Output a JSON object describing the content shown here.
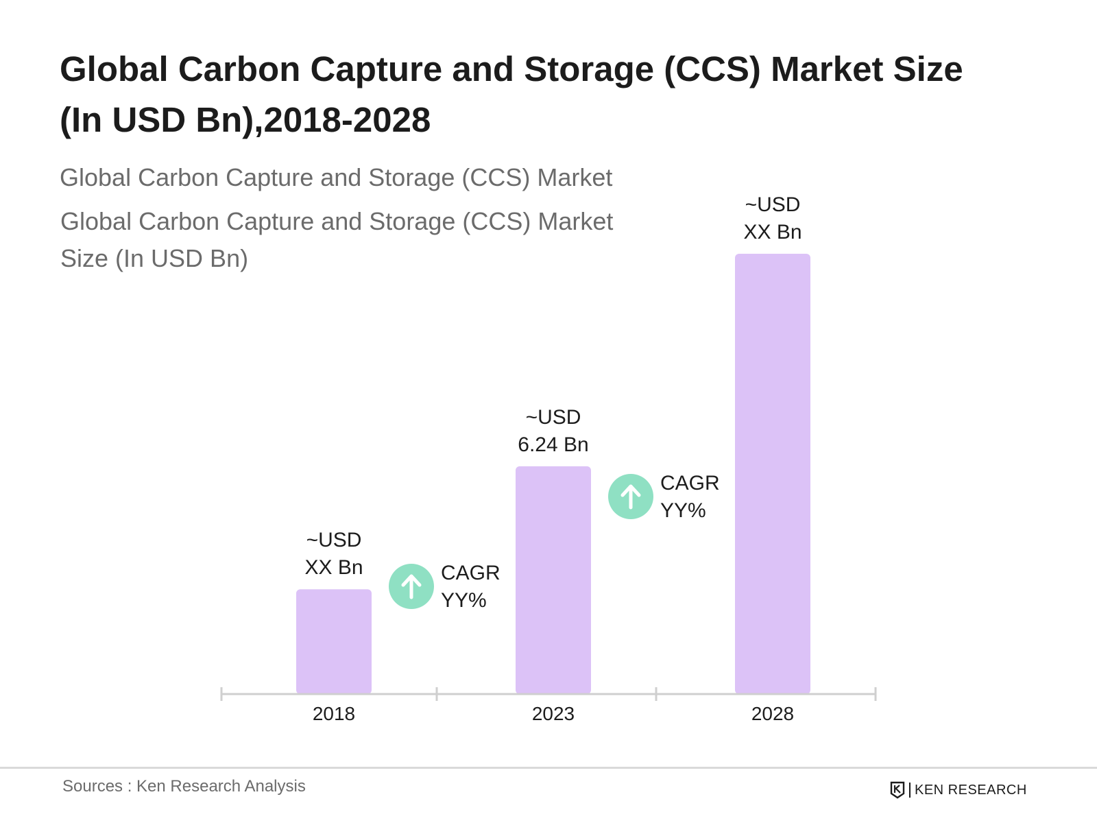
{
  "header": {
    "title": "Global Carbon Capture and Storage (CCS) Market Size (In USD Bn),2018-2028",
    "subtitle": "Global Carbon Capture and Storage (CCS) Market"
  },
  "footer": {
    "source": "Sources : Ken Research Analysis",
    "brand": "KEN RESEARCH"
  },
  "colors": {
    "bar": "#dcc2f7",
    "axis": "#cfcfcf",
    "cagr_badge": "#8fe0c3",
    "text": "#1c1c1c"
  },
  "chart_data": {
    "type": "bar",
    "title": "Global Carbon Capture and Storage (CCS) Market Size (In USD Bn),2018-2028",
    "categories": [
      "2018",
      "2023",
      "2028"
    ],
    "series": [
      {
        "name": "Global Carbon Capture and Storage (CCS) Market Size (In USD Bn)",
        "values": [
          2.87,
          6.24,
          12.06
        ]
      }
    ],
    "data_labels": [
      {
        "line1": "~USD",
        "line2": "XX Bn"
      },
      {
        "line1": "~USD",
        "line2": "6.24 Bn"
      },
      {
        "line1": "~USD",
        "line2": "XX Bn"
      }
    ],
    "annotations": [
      {
        "between": [
          "2018",
          "2023"
        ],
        "line1": "CAGR",
        "line2": "YY%",
        "icon": "arrow-up-icon"
      },
      {
        "between": [
          "2023",
          "2028"
        ],
        "line1": "CAGR",
        "line2": "YY%",
        "icon": "arrow-up-icon"
      }
    ],
    "ylim": [
      0,
      13
    ],
    "grid": false
  }
}
